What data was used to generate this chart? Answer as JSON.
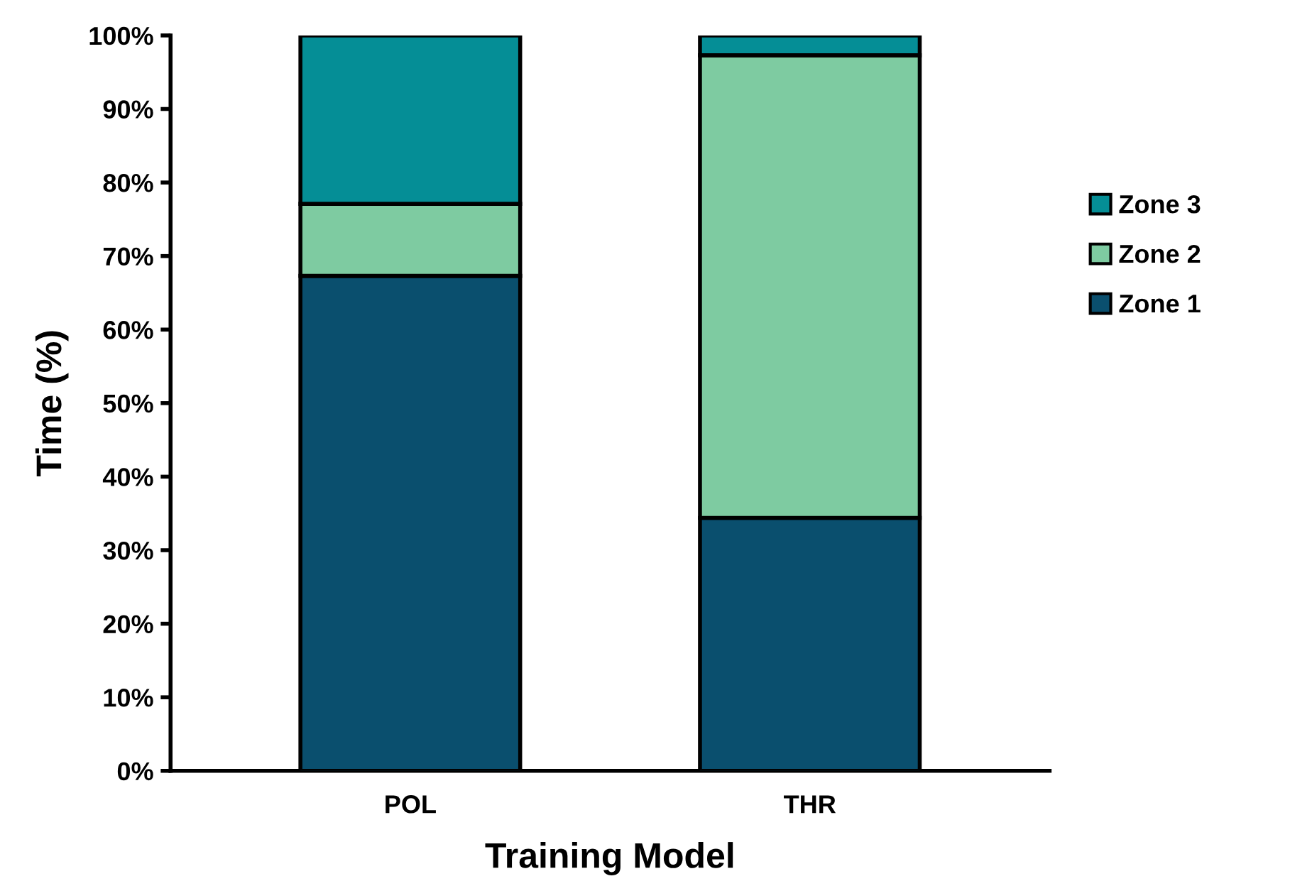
{
  "chart_data": {
    "type": "bar",
    "stacked": true,
    "xlabel": "Training Model",
    "ylabel": "Time (%)",
    "categories": [
      "POL",
      "THR"
    ],
    "series": [
      {
        "name": "Zone 1",
        "color": "#0a4f6e",
        "values": [
          67.3,
          34.4
        ]
      },
      {
        "name": "Zone 2",
        "color": "#7ecba1",
        "values": [
          9.8,
          62.9
        ]
      },
      {
        "name": "Zone 3",
        "color": "#058e96",
        "values": [
          22.9,
          2.7
        ]
      }
    ],
    "ylim": [
      0,
      100
    ],
    "yticks": [
      {
        "value": 0,
        "label": "0%"
      },
      {
        "value": 10,
        "label": "10%"
      },
      {
        "value": 20,
        "label": "20%"
      },
      {
        "value": 30,
        "label": "30%"
      },
      {
        "value": 40,
        "label": "40%"
      },
      {
        "value": 50,
        "label": "50%"
      },
      {
        "value": 60,
        "label": "60%"
      },
      {
        "value": 70,
        "label": "70%"
      },
      {
        "value": 80,
        "label": "80%"
      },
      {
        "value": 90,
        "label": "90%"
      },
      {
        "value": 100,
        "label": "100%"
      }
    ],
    "grid": false,
    "legend": "right"
  }
}
